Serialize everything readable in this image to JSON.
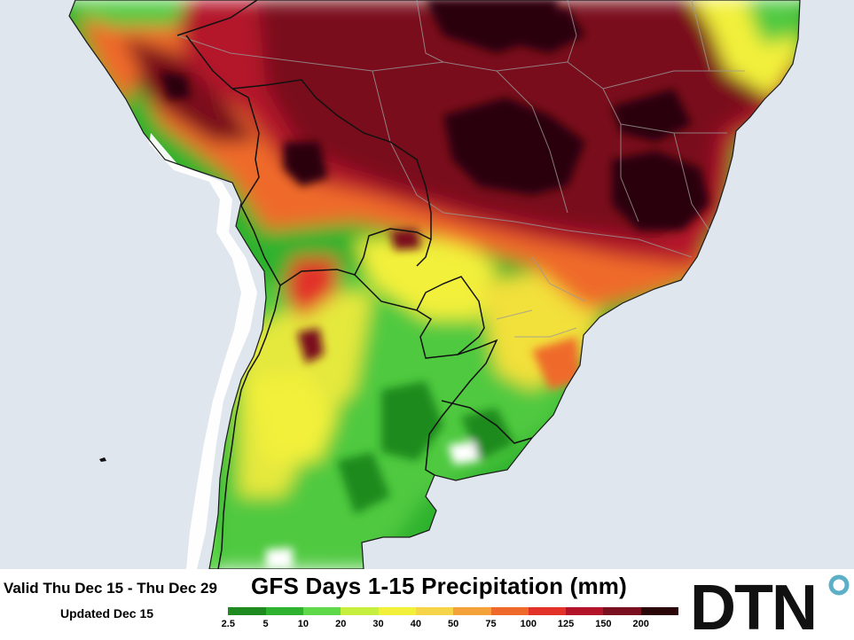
{
  "footer": {
    "valid_range": "Valid Thu Dec 15 - Thu Dec 29",
    "updated": "Updated Dec 15",
    "title": "GFS Days 1-15 Precipitation (mm)"
  },
  "legend": {
    "colors": [
      "#ffffff",
      "#1f8a1f",
      "#2fb22f",
      "#5fd84a",
      "#c6ef3f",
      "#f2f03a",
      "#f7d54a",
      "#f5a23a",
      "#ef6a2a",
      "#e2322a",
      "#b4142a",
      "#7a0f1f",
      "#2a0608"
    ],
    "labels": [
      "2.5",
      "5",
      "10",
      "20",
      "30",
      "40",
      "50",
      "75",
      "100",
      "125",
      "150",
      "200"
    ]
  },
  "map": {
    "ocean_color": "#e0e6ed",
    "land_dry_color": "#ffffff",
    "border_color": "#000000",
    "state_line_color": "#9a9a9a"
  },
  "logo": {
    "text": "DTN",
    "accent": "#5bb0c8"
  }
}
